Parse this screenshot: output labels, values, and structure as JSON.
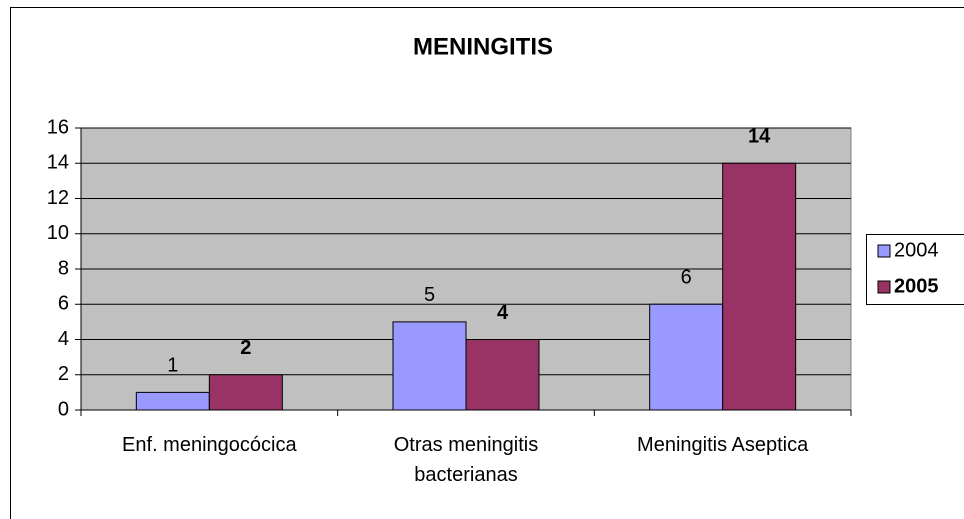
{
  "chart_data": {
    "type": "bar",
    "title": "MENINGITIS",
    "categories": [
      "Enf. meningocócica",
      "Otras meningitis bacterianas",
      "Meningitis Aseptica"
    ],
    "series": [
      {
        "name": "2004",
        "color": "#9999ff",
        "values": [
          1,
          5,
          6
        ]
      },
      {
        "name": "2005",
        "color": "#993366",
        "values": [
          2,
          4,
          14
        ]
      }
    ],
    "ylim": [
      0,
      16
    ],
    "yticks": [
      0,
      2,
      4,
      6,
      8,
      10,
      12,
      14,
      16
    ],
    "grid": true,
    "legend": "right"
  }
}
